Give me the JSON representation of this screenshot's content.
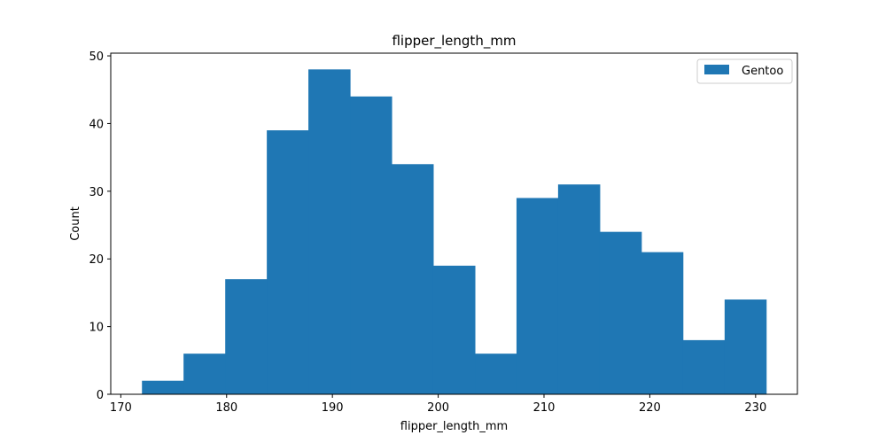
{
  "chart_data": {
    "type": "bar",
    "title": "flipper_length_mm",
    "xlabel": "flipper_length_mm",
    "ylabel": "Count",
    "bin_edges": [
      172.0,
      175.93,
      179.87,
      183.8,
      187.73,
      191.67,
      195.6,
      199.53,
      203.47,
      207.4,
      211.33,
      215.27,
      219.2,
      223.13,
      227.07,
      231.0
    ],
    "series": [
      {
        "name": "Gentoo",
        "color": "#1f77b4",
        "values": [
          2,
          6,
          17,
          39,
          48,
          44,
          34,
          19,
          6,
          29,
          31,
          24,
          21,
          8,
          14
        ]
      }
    ],
    "xlim": [
      169.05,
      233.95
    ],
    "ylim": [
      0,
      50.4
    ],
    "xticks": [
      170,
      180,
      190,
      200,
      210,
      220,
      230
    ],
    "yticks": [
      0,
      10,
      20,
      30,
      40,
      50
    ],
    "legend_position": "top-right",
    "grid": false
  }
}
